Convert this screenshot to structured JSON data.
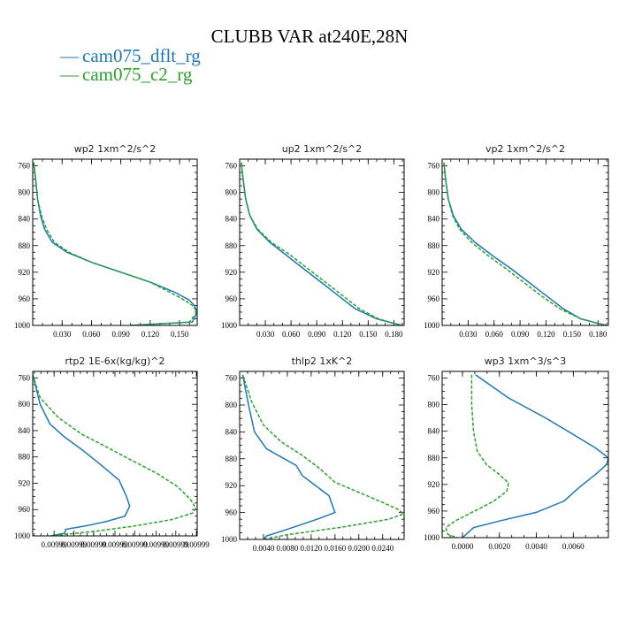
{
  "figure": {
    "title": "CLUBB VAR at240E,28N",
    "legend": [
      {
        "name": "cam075_dflt_rg",
        "color": "#1f77b4",
        "line_marker": "—"
      },
      {
        "name": "cam075_c2_rg",
        "color": "#2ca02c",
        "line_marker": "—"
      }
    ]
  },
  "chart_data": [
    {
      "type": "line",
      "title": "wp2  1xm^2/s^2",
      "xlim": [
        0.0,
        0.168
      ],
      "ylim": [
        1000,
        750
      ],
      "xticks": [
        0.03,
        0.06,
        0.09,
        0.12,
        0.15
      ],
      "xtick_labels": [
        "0.030",
        "0.060",
        "0.090",
        "0.120",
        "0.150"
      ],
      "yticks": [
        760,
        800,
        840,
        880,
        920,
        960,
        1000
      ],
      "ytick_labels": [
        "760",
        "800",
        "840",
        "880",
        "920",
        "960",
        "1000"
      ],
      "series": [
        {
          "name": "cam075_dflt_rg",
          "color": "#1f77b4",
          "dashed": false,
          "x": [
            0.001,
            0.003,
            0.005,
            0.008,
            0.012,
            0.02,
            0.035,
            0.06,
            0.09,
            0.12,
            0.145,
            0.16,
            0.165,
            0.168,
            0.163,
            0.1
          ],
          "y": [
            755,
            780,
            810,
            835,
            855,
            875,
            890,
            905,
            920,
            935,
            950,
            962,
            970,
            980,
            995,
            1000
          ]
        },
        {
          "name": "cam075_c2_rg",
          "color": "#2ca02c",
          "dashed": true,
          "x": [
            0.001,
            0.003,
            0.005,
            0.009,
            0.014,
            0.022,
            0.037,
            0.06,
            0.09,
            0.12,
            0.14,
            0.155,
            0.163,
            0.168,
            0.16,
            0.1
          ],
          "y": [
            755,
            780,
            810,
            835,
            855,
            875,
            890,
            905,
            920,
            935,
            950,
            962,
            970,
            980,
            995,
            1000
          ]
        }
      ]
    },
    {
      "type": "line",
      "title": "up2  1xm^2/s^2",
      "xlim": [
        0.0,
        0.192
      ],
      "ylim": [
        1000,
        750
      ],
      "xticks": [
        0.03,
        0.06,
        0.09,
        0.12,
        0.15,
        0.18
      ],
      "xtick_labels": [
        "0.030",
        "0.060",
        "0.090",
        "0.120",
        "0.150",
        "0.180"
      ],
      "yticks": [
        760,
        800,
        840,
        880,
        920,
        960,
        1000
      ],
      "ytick_labels": [
        "760",
        "800",
        "840",
        "880",
        "920",
        "960",
        "1000"
      ],
      "series": [
        {
          "name": "cam075_dflt_rg",
          "color": "#1f77b4",
          "dashed": false,
          "x": [
            0.002,
            0.004,
            0.007,
            0.012,
            0.02,
            0.035,
            0.055,
            0.075,
            0.095,
            0.115,
            0.135,
            0.16,
            0.18,
            0.19
          ],
          "y": [
            755,
            780,
            810,
            835,
            855,
            875,
            895,
            915,
            935,
            955,
            975,
            990,
            997,
            1000
          ]
        },
        {
          "name": "cam075_c2_rg",
          "color": "#2ca02c",
          "dashed": true,
          "x": [
            0.002,
            0.004,
            0.007,
            0.012,
            0.021,
            0.037,
            0.06,
            0.08,
            0.1,
            0.12,
            0.14,
            0.162,
            0.18,
            0.19
          ],
          "y": [
            755,
            780,
            810,
            835,
            855,
            875,
            895,
            915,
            935,
            955,
            975,
            990,
            997,
            1000
          ]
        }
      ]
    },
    {
      "type": "line",
      "title": "vp2  1xm^2/s^2",
      "xlim": [
        0.0,
        0.192
      ],
      "ylim": [
        1000,
        750
      ],
      "xticks": [
        0.03,
        0.06,
        0.09,
        0.12,
        0.15,
        0.18
      ],
      "xtick_labels": [
        "0.030",
        "0.060",
        "0.090",
        "0.120",
        "0.150",
        "0.180"
      ],
      "yticks": [
        760,
        800,
        840,
        880,
        920,
        960,
        1000
      ],
      "ytick_labels": [
        "760",
        "800",
        "840",
        "880",
        "920",
        "960",
        "1000"
      ],
      "series": [
        {
          "name": "cam075_dflt_rg",
          "color": "#1f77b4",
          "dashed": false,
          "x": [
            0.002,
            0.004,
            0.007,
            0.013,
            0.022,
            0.038,
            0.058,
            0.08,
            0.1,
            0.12,
            0.14,
            0.16,
            0.18,
            0.19
          ],
          "y": [
            755,
            780,
            810,
            835,
            855,
            875,
            895,
            915,
            935,
            955,
            975,
            990,
            997,
            1000
          ]
        },
        {
          "name": "cam075_c2_rg",
          "color": "#2ca02c",
          "dashed": true,
          "x": [
            0.002,
            0.004,
            0.007,
            0.012,
            0.02,
            0.034,
            0.053,
            0.074,
            0.094,
            0.114,
            0.136,
            0.16,
            0.18,
            0.19
          ],
          "y": [
            755,
            780,
            810,
            835,
            855,
            875,
            895,
            915,
            935,
            955,
            975,
            990,
            997,
            1000
          ]
        }
      ]
    },
    {
      "type": "line",
      "title": "rtp2  1E-6x(kg/kg)^2",
      "xlim": [
        0.0099999,
        0.01
      ],
      "ylim": [
        1000,
        750
      ],
      "xticks": [
        0.009999913,
        0.009999925,
        0.009999937,
        0.00999995,
        0.009999962,
        0.009999975,
        0.009999987,
        0.0099999995
      ],
      "xtick_labels": [
        "0.00999",
        "0.00999",
        "0.00999",
        "0.00999",
        "0.00999",
        "0.00999",
        "0.00999",
        "0.00999"
      ],
      "yticks": [
        760,
        800,
        840,
        880,
        920,
        960,
        1000
      ],
      "ytick_labels": [
        "760",
        "800",
        "840",
        "880",
        "920",
        "960",
        "1000"
      ],
      "series": [
        {
          "name": "cam075_dflt_rg",
          "color": "#1f77b4",
          "dashed": false,
          "x": [
            0.0099999,
            0.0099999045,
            0.0099999105,
            0.0099999195,
            0.0099999305,
            0.0099999405,
            0.0099999525,
            0.009999957,
            0.009999959,
            0.009999956,
            0.009999945,
            0.009999932,
            0.00999992,
            0.0099999195,
            0.009999911
          ],
          "y": [
            755,
            800,
            830,
            850,
            870,
            890,
            915,
            940,
            955,
            970,
            978,
            985,
            990,
            996,
            1000
          ]
        },
        {
          "name": "cam075_c2_rg",
          "color": "#2ca02c",
          "dashed": true,
          "x": [
            0.0099999,
            0.0099999045,
            0.0099999155,
            0.0099999295,
            0.009999945,
            0.00999996,
            0.0099999755,
            0.009999988,
            0.009999996,
            0.0099999992,
            0.0099999975,
            0.009999985,
            0.009999962,
            0.009999938,
            0.009999911
          ],
          "y": [
            755,
            790,
            820,
            845,
            865,
            885,
            905,
            925,
            945,
            958,
            965,
            975,
            985,
            993,
            1000
          ]
        }
      ]
    },
    {
      "type": "line",
      "title": "thlp2  1xK^2",
      "xlim": [
        0.0,
        0.0276
      ],
      "ylim": [
        1000,
        750
      ],
      "xticks": [
        0.004,
        0.008,
        0.012,
        0.016,
        0.02,
        0.024
      ],
      "xtick_labels": [
        "0.0040",
        "0.0080",
        "0.0120",
        "0.0160",
        "0.0200",
        "0.0240"
      ],
      "yticks": [
        760,
        800,
        840,
        880,
        920,
        960,
        1000
      ],
      "ytick_labels": [
        "760",
        "800",
        "840",
        "880",
        "920",
        "960",
        "1000"
      ],
      "series": [
        {
          "name": "cam075_dflt_rg",
          "color": "#1f77b4",
          "dashed": false,
          "x": [
            0.0005,
            0.0015,
            0.0025,
            0.0045,
            0.0075,
            0.0095,
            0.0105,
            0.012,
            0.0135,
            0.015,
            0.016,
            0.013,
            0.008,
            0.0045,
            0.004
          ],
          "y": [
            755,
            800,
            840,
            865,
            880,
            890,
            905,
            915,
            925,
            935,
            960,
            970,
            985,
            995,
            1000
          ]
        },
        {
          "name": "cam075_c2_rg",
          "color": "#2ca02c",
          "dashed": true,
          "x": [
            0.0005,
            0.002,
            0.004,
            0.007,
            0.0105,
            0.0135,
            0.016,
            0.02,
            0.024,
            0.0265,
            0.0275,
            0.025,
            0.017,
            0.008,
            0.004
          ],
          "y": [
            755,
            795,
            830,
            855,
            875,
            895,
            915,
            930,
            945,
            955,
            962,
            970,
            982,
            993,
            1000
          ]
        }
      ]
    },
    {
      "type": "line",
      "title": "wp3  1xm^3/s^3",
      "xlim": [
        -0.0011,
        0.0079
      ],
      "ylim": [
        1000,
        750
      ],
      "xticks": [
        0.0,
        0.002,
        0.004,
        0.006
      ],
      "xtick_labels": [
        "0.0000",
        "0.0020",
        "0.0040",
        "0.0060"
      ],
      "yticks": [
        760,
        800,
        840,
        880,
        920,
        960,
        1000
      ],
      "ytick_labels": [
        "760",
        "800",
        "840",
        "880",
        "920",
        "960",
        "1000"
      ],
      "series": [
        {
          "name": "cam075_dflt_rg",
          "color": "#1f77b4",
          "dashed": false,
          "x": [
            0.0007,
            0.0025,
            0.0045,
            0.006,
            0.0072,
            0.0079,
            0.0078,
            0.0072,
            0.0063,
            0.0055,
            0.004,
            0.002,
            0.0006,
            0.0
          ],
          "y": [
            755,
            790,
            820,
            845,
            865,
            880,
            890,
            905,
            925,
            945,
            962,
            975,
            985,
            1000
          ]
        },
        {
          "name": "cam075_c2_rg",
          "color": "#2ca02c",
          "dashed": true,
          "x": [
            0.0005,
            0.0005,
            0.0006,
            0.0008,
            0.0013,
            0.002,
            0.0025,
            0.0024,
            0.0017,
            0.0008,
            -0.0004,
            -0.0009,
            -0.0008,
            -0.0003
          ],
          "y": [
            755,
            800,
            840,
            870,
            890,
            905,
            918,
            930,
            945,
            958,
            975,
            985,
            995,
            1000
          ]
        }
      ]
    }
  ]
}
